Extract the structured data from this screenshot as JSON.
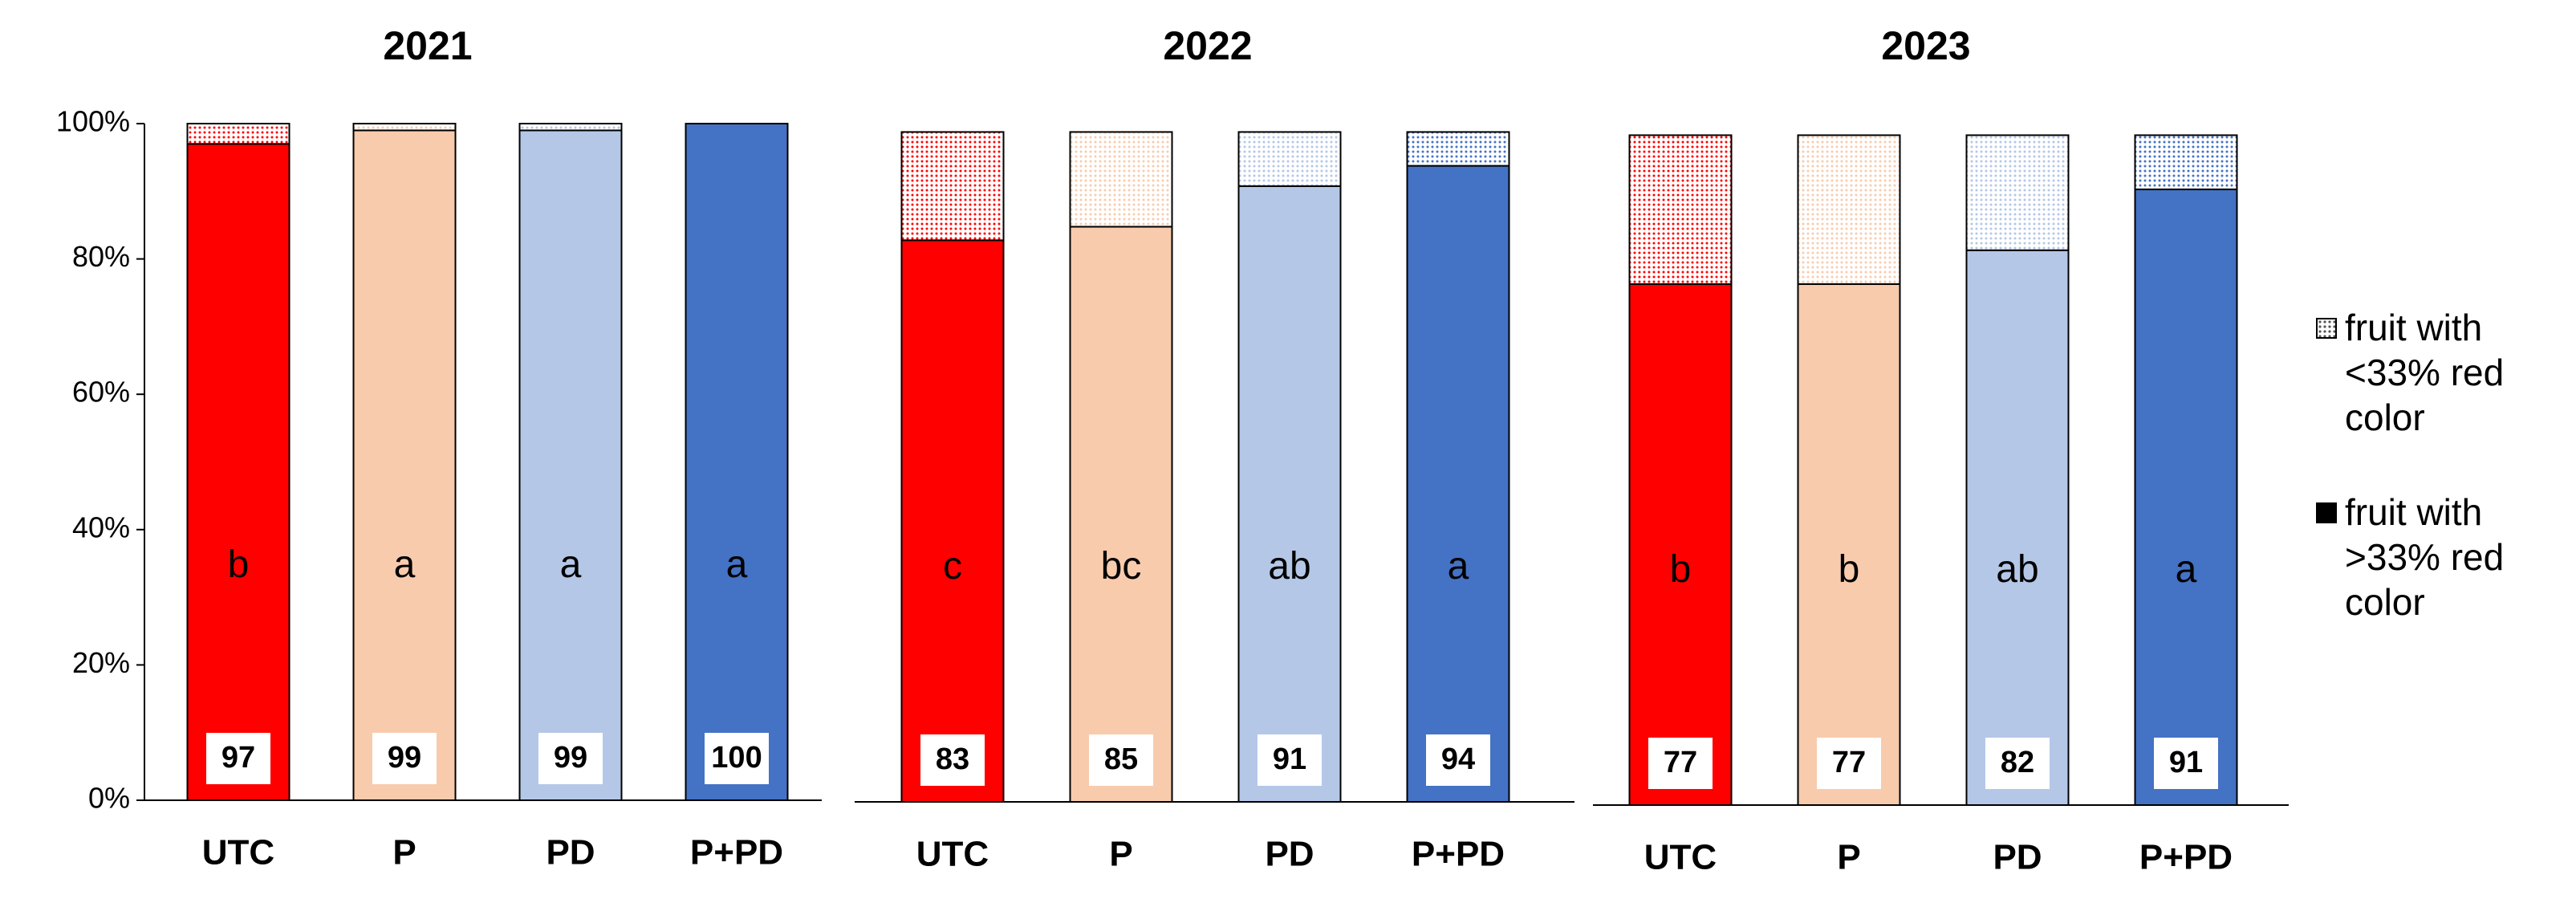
{
  "legend": [
    "fruit with <33% red color",
    "fruit with >33% red color"
  ],
  "chart_data": [
    {
      "type": "stacked-bar",
      "title": "2021",
      "categories": [
        "UTC",
        "P",
        "PD",
        "P+PD"
      ],
      "colors": [
        "#ff0000",
        "#f8cbad",
        "#b4c7e7",
        "#4472c4"
      ],
      "series": [
        {
          "values": [
            97,
            99,
            99,
            100
          ]
        },
        {
          "values": [
            3,
            1,
            1,
            0
          ]
        }
      ],
      "annotations": [
        "b",
        "a",
        "a",
        "a"
      ],
      "ylim": [
        0,
        100
      ],
      "yticks": [
        {
          "value": 0,
          "label": "0%"
        },
        {
          "value": 20,
          "label": "20%"
        },
        {
          "value": 40,
          "label": "40%"
        },
        {
          "value": 60,
          "label": "60%"
        },
        {
          "value": 80,
          "label": "80%"
        },
        {
          "value": 100,
          "label": "100%"
        }
      ]
    },
    {
      "type": "stacked-bar",
      "title": "2022",
      "categories": [
        "UTC",
        "P",
        "PD",
        "P+PD"
      ],
      "colors": [
        "#ff0000",
        "#f8cbad",
        "#b4c7e7",
        "#4472c4"
      ],
      "series": [
        {
          "values": [
            83,
            85,
            91,
            94
          ]
        },
        {
          "values": [
            16,
            14,
            8,
            5
          ]
        }
      ],
      "annotations": [
        "c",
        "bc",
        "ab",
        "a"
      ],
      "ylim": [
        0,
        100
      ]
    },
    {
      "type": "stacked-bar",
      "title": "2023",
      "categories": [
        "UTC",
        "P",
        "PD",
        "P+PD"
      ],
      "colors": [
        "#ff0000",
        "#f8cbad",
        "#b4c7e7",
        "#4472c4"
      ],
      "series": [
        {
          "values": [
            77,
            77,
            82,
            91
          ]
        },
        {
          "values": [
            22,
            22,
            17,
            8
          ]
        }
      ],
      "annotations": [
        "b",
        "b",
        "ab",
        "a"
      ],
      "ylim": [
        0,
        100
      ]
    }
  ]
}
